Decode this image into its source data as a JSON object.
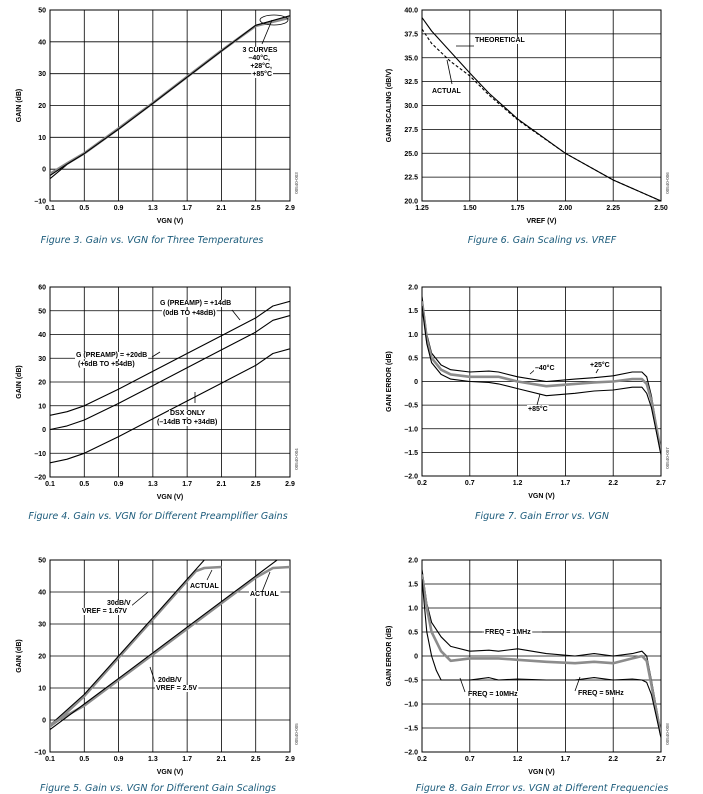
{
  "chart_data": [
    {
      "type": "line",
      "caption": "Figure 3. Gain vs. VGN for Three Temperatures",
      "xlabel": "VGN (V)",
      "ylabel": "GAIN (dB)",
      "xlim": [
        0.1,
        2.9
      ],
      "ylim": [
        -10,
        50
      ],
      "xticks": [
        "0.1",
        "0.5",
        "0.9",
        "1.3",
        "1.7",
        "2.1",
        "2.5",
        "2.9"
      ],
      "yticks": [
        "–10",
        "0",
        "10",
        "20",
        "30",
        "40",
        "50"
      ],
      "grid": true,
      "series": [
        {
          "label": "–40°C",
          "color": "#000000",
          "x": [
            0.1,
            0.3,
            0.5,
            0.9,
            1.3,
            1.7,
            2.1,
            2.5,
            2.9
          ],
          "y": [
            -3,
            1.5,
            4.8,
            12.5,
            20.6,
            28.8,
            37,
            45,
            47.8
          ]
        },
        {
          "label": "+28°C",
          "color": "#8c8c8c",
          "x": [
            0.1,
            0.3,
            0.5,
            0.9,
            1.3,
            1.7,
            2.1,
            2.5,
            2.9
          ],
          "y": [
            -1.5,
            1.8,
            5,
            12.8,
            20.8,
            29,
            37.2,
            45,
            47.6
          ]
        },
        {
          "label": "+85°C",
          "color": "#000000",
          "x": [
            0.1,
            0.3,
            0.5,
            0.9,
            1.3,
            1.7,
            2.1,
            2.5,
            2.9
          ],
          "y": [
            -2,
            1.6,
            4.9,
            12.6,
            20.7,
            28.9,
            37.1,
            45.2,
            48.2
          ]
        }
      ],
      "annotations": [
        "3 CURVES",
        "–40°C,",
        "+28°C,",
        "+85°C"
      ],
      "code": "00540-003"
    },
    {
      "type": "line",
      "caption": "Figure 6. Gain Scaling vs. VREF",
      "xlabel": "VREF (V)",
      "ylabel": "GAIN SCALING (dB/V)",
      "xlim": [
        1.25,
        2.5
      ],
      "ylim": [
        20.0,
        40.0
      ],
      "xticks": [
        "1.25",
        "1.50",
        "1.75",
        "2.00",
        "2.25",
        "2.50"
      ],
      "yticks": [
        "20.0",
        "22.5",
        "25.0",
        "27.5",
        "30.0",
        "32.5",
        "35.0",
        "37.5",
        "40.0"
      ],
      "grid": true,
      "series": [
        {
          "label": "ACTUAL",
          "color": "#000000",
          "dashed": false,
          "x": [
            1.25,
            1.3,
            1.4,
            1.5,
            1.6,
            1.75,
            2.0,
            2.25,
            2.5
          ],
          "y": [
            39.2,
            37.8,
            35.6,
            33.4,
            31.3,
            28.6,
            25,
            22.2,
            20
          ]
        },
        {
          "label": "THEORETICAL",
          "color": "#000000",
          "dashed": true,
          "x": [
            1.25,
            1.3,
            1.4,
            1.5,
            1.6,
            1.75,
            2.0,
            2.25,
            2.5
          ],
          "y": [
            38,
            36.5,
            34.6,
            33.1,
            31.1,
            28.5,
            25,
            22.2,
            20
          ]
        }
      ],
      "annotations": [
        "THEORETICAL",
        "ACTUAL"
      ],
      "code": "00540-006"
    },
    {
      "type": "line",
      "caption": "Figure 4. Gain vs. VGN for Different Preamplifier Gains",
      "xlabel": "VGN (V)",
      "ylabel": "GAIN (dB)",
      "xlim": [
        0.1,
        2.9
      ],
      "ylim": [
        -20,
        60
      ],
      "xticks": [
        "0.1",
        "0.5",
        "0.9",
        "1.3",
        "1.7",
        "2.1",
        "2.5",
        "2.9"
      ],
      "yticks": [
        "–20",
        "–10",
        "0",
        "10",
        "20",
        "30",
        "40",
        "50",
        "60"
      ],
      "grid": true,
      "series": [
        {
          "label": "G (PREAMP) = +20dB",
          "color": "#000000",
          "x": [
            0.1,
            0.3,
            0.5,
            0.9,
            1.3,
            1.7,
            2.1,
            2.5,
            2.7,
            2.9
          ],
          "y": [
            6,
            7.5,
            10,
            17,
            24.5,
            32,
            39.5,
            47,
            52,
            54
          ]
        },
        {
          "label": "G (PREAMP) = +14dB",
          "color": "#000000",
          "x": [
            0.1,
            0.3,
            0.5,
            0.9,
            1.3,
            1.7,
            2.1,
            2.5,
            2.7,
            2.9
          ],
          "y": [
            0,
            1.5,
            4,
            11,
            18.5,
            26,
            33.5,
            41,
            46,
            48
          ]
        },
        {
          "label": "DSX ONLY",
          "color": "#000000",
          "x": [
            0.1,
            0.3,
            0.5,
            0.9,
            1.3,
            1.7,
            2.1,
            2.5,
            2.7,
            2.9
          ],
          "y": [
            -14,
            -12.5,
            -10,
            -3,
            4.5,
            12,
            19.5,
            27,
            32,
            34
          ]
        }
      ],
      "annotations": [
        "G (PREAMP) = +14dB",
        "(0dB TO +48dB)",
        "G (PREAMP) = +20dB",
        "(+6dB TO +54dB)",
        "DSX ONLY",
        "(–14dB TO +34dB)"
      ],
      "code": "00540-004"
    },
    {
      "type": "line",
      "caption": "Figure 7. Gain Error vs. VGN",
      "xlabel": "VGN (V)",
      "ylabel": "GAIN ERROR (dB)",
      "xlim": [
        0.2,
        2.7
      ],
      "ylim": [
        -2.0,
        2.0
      ],
      "xticks": [
        "0.2",
        "0.7",
        "1.2",
        "1.7",
        "2.2",
        "2.7"
      ],
      "yticks": [
        "–2.0",
        "–1.5",
        "–1.0",
        "–0.5",
        "0",
        "0.5",
        "1.0",
        "1.5",
        "2.0"
      ],
      "grid": true,
      "series": [
        {
          "label": "–40°C",
          "color": "#000000",
          "x": [
            0.2,
            0.25,
            0.3,
            0.4,
            0.5,
            0.7,
            0.9,
            1.0,
            1.2,
            1.5,
            1.8,
            2.0,
            2.2,
            2.4,
            2.5,
            2.55,
            2.6,
            2.7
          ],
          "y": [
            1.8,
            1.0,
            0.6,
            0.35,
            0.25,
            0.2,
            0.22,
            0.2,
            0.1,
            0.0,
            0.05,
            0.08,
            0.12,
            0.2,
            0.2,
            0.1,
            -0.3,
            -1.5
          ]
        },
        {
          "label": "+25°C",
          "color": "#8c8c8c",
          "x": [
            0.2,
            0.25,
            0.3,
            0.4,
            0.5,
            0.7,
            0.9,
            1.0,
            1.2,
            1.5,
            1.8,
            2.0,
            2.2,
            2.4,
            2.5,
            2.55,
            2.6,
            2.7
          ],
          "y": [
            1.7,
            0.9,
            0.5,
            0.25,
            0.15,
            0.1,
            0.1,
            0.1,
            0.0,
            -0.1,
            -0.05,
            -0.02,
            0.0,
            0.05,
            0.05,
            -0.05,
            -0.4,
            -1.5
          ]
        },
        {
          "label": "+85°C",
          "color": "#000000",
          "x": [
            0.2,
            0.25,
            0.3,
            0.4,
            0.5,
            0.7,
            0.9,
            1.0,
            1.2,
            1.5,
            1.8,
            2.0,
            2.2,
            2.4,
            2.5,
            2.55,
            2.6,
            2.7
          ],
          "y": [
            1.6,
            0.8,
            0.4,
            0.15,
            0.05,
            0.0,
            -0.02,
            -0.05,
            -0.15,
            -0.3,
            -0.25,
            -0.2,
            -0.18,
            -0.12,
            -0.12,
            -0.25,
            -0.55,
            -1.55
          ]
        }
      ],
      "annotations": [
        "–40°C",
        "+25°C",
        "+85°C"
      ],
      "code": "00540-007"
    },
    {
      "type": "line",
      "caption": "Figure 5. Gain vs. VGN for Different Gain Scalings",
      "xlabel": "VGN (V)",
      "ylabel": "GAIN (dB)",
      "xlim": [
        0.1,
        2.9
      ],
      "ylim": [
        -10,
        50
      ],
      "xticks": [
        "0.1",
        "0.5",
        "0.9",
        "1.3",
        "1.7",
        "2.1",
        "2.5",
        "2.9"
      ],
      "yticks": [
        "–10",
        "0",
        "10",
        "20",
        "30",
        "40",
        "50"
      ],
      "grid": true,
      "series": [
        {
          "label": "30dB/V ACTUAL",
          "color": "#8c8c8c",
          "x": [
            0.0,
            0.2,
            0.5,
            0.9,
            1.3,
            1.7,
            1.8,
            1.9,
            2.1
          ],
          "y": [
            -4,
            0,
            7.5,
            19.5,
            31.5,
            43.5,
            46.5,
            47.5,
            47.8
          ]
        },
        {
          "label": "30dB/V",
          "color": "#000000",
          "x": [
            0.0,
            0.5,
            0.9,
            1.3,
            1.7,
            1.9,
            2.1
          ],
          "y": [
            -4,
            8,
            20,
            32,
            44,
            50,
            56
          ]
        },
        {
          "label": "20dB/V ACTUAL",
          "color": "#8c8c8c",
          "x": [
            0.0,
            0.2,
            0.5,
            0.9,
            1.3,
            1.7,
            2.1,
            2.5,
            2.7,
            2.9
          ],
          "y": [
            -3,
            0,
            4.5,
            12.5,
            20.5,
            28.5,
            36.5,
            44.5,
            47.5,
            47.8
          ]
        },
        {
          "label": "20dB/V",
          "color": "#000000",
          "x": [
            0.0,
            0.5,
            0.9,
            1.3,
            1.7,
            2.1,
            2.5,
            2.9
          ],
          "y": [
            -5,
            5,
            13,
            21,
            29,
            37,
            45,
            53
          ]
        }
      ],
      "annotations": [
        "ACTUAL",
        "ACTUAL",
        "30dB/V",
        "VREF = 1.67V",
        "20dB/V",
        "VREF = 2.5V"
      ],
      "code": "00540-005"
    },
    {
      "type": "line",
      "caption": "Figure 8. Gain Error vs. VGN at Different Frequencies",
      "xlabel": "VGN (V)",
      "ylabel": "GAIN ERROR (dB)",
      "xlim": [
        0.2,
        2.7
      ],
      "ylim": [
        -2.0,
        2.0
      ],
      "xticks": [
        "0.2",
        "0.7",
        "1.2",
        "1.7",
        "2.2",
        "2.7"
      ],
      "yticks": [
        "–2.0",
        "–1.5",
        "–1.0",
        "–0.5",
        "0",
        "0.5",
        "1.0",
        "1.5",
        "2.0"
      ],
      "grid": true,
      "series": [
        {
          "label": "FREQ = 1MHz",
          "color": "#000000",
          "x": [
            0.2,
            0.25,
            0.3,
            0.4,
            0.5,
            0.7,
            0.9,
            1.0,
            1.2,
            1.5,
            1.8,
            2.0,
            2.2,
            2.4,
            2.5,
            2.55,
            2.6,
            2.7
          ],
          "y": [
            1.8,
            1.1,
            0.7,
            0.4,
            0.2,
            0.1,
            0.12,
            0.1,
            0.15,
            0.05,
            0.0,
            0.05,
            0.0,
            0.05,
            0.1,
            0.0,
            -0.5,
            -1.6
          ]
        },
        {
          "label": "FREQ = 5MHz",
          "color": "#8c8c8c",
          "x": [
            0.2,
            0.25,
            0.3,
            0.4,
            0.5,
            0.7,
            0.9,
            1.0,
            1.2,
            1.5,
            1.8,
            2.0,
            2.2,
            2.4,
            2.5,
            2.55,
            2.6,
            2.7
          ],
          "y": [
            1.7,
            1.0,
            0.5,
            0.1,
            -0.1,
            -0.05,
            -0.05,
            -0.05,
            -0.08,
            -0.12,
            -0.15,
            -0.12,
            -0.15,
            -0.05,
            0.0,
            -0.1,
            -0.6,
            -1.65
          ]
        },
        {
          "label": "FREQ = 10MHz",
          "color": "#000000",
          "x": [
            0.2,
            0.25,
            0.3,
            0.35,
            0.4,
            0.7,
            0.9,
            1.0,
            1.2,
            1.5,
            1.8,
            2.0,
            2.2,
            2.4,
            2.5,
            2.55,
            2.6,
            2.7
          ],
          "y": [
            1.6,
            0.5,
            0.0,
            -0.3,
            -0.5,
            -0.5,
            -0.45,
            -0.5,
            -0.48,
            -0.5,
            -0.5,
            -0.45,
            -0.5,
            -0.48,
            -0.5,
            -0.55,
            -0.8,
            -1.7
          ]
        }
      ],
      "annotations": [
        "FREQ = 1MHz",
        "FREQ = 10MHz",
        "FREQ = 5MHz"
      ],
      "code": "00540-008"
    }
  ]
}
